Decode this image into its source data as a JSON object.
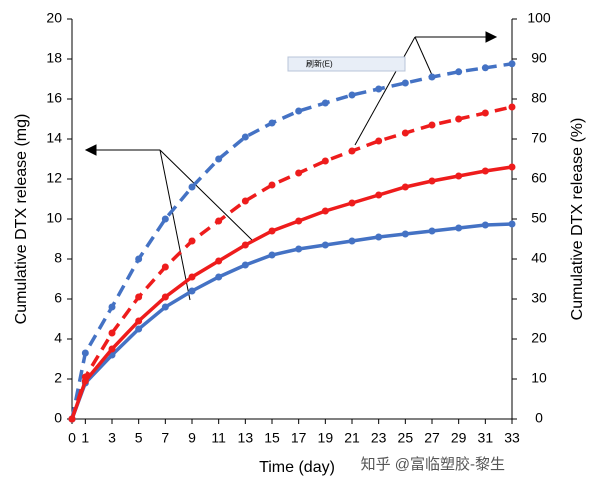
{
  "chart_data": {
    "type": "line",
    "x_label": "Time (day)",
    "y_label": "Cumulative DTX release (mg)",
    "y2_label": "Cumulative DTX release (%)",
    "x": [
      0,
      1,
      3,
      5,
      7,
      9,
      11,
      13,
      15,
      17,
      19,
      21,
      23,
      25,
      27,
      29,
      31,
      33
    ],
    "xlim": [
      0,
      33
    ],
    "xticks": [
      0,
      1,
      3,
      5,
      7,
      9,
      11,
      13,
      15,
      17,
      19,
      21,
      23,
      25,
      27,
      29,
      31,
      33
    ],
    "ylim": [
      0,
      20
    ],
    "yticks": [
      0,
      2,
      4,
      6,
      8,
      10,
      12,
      14,
      16,
      18,
      20
    ],
    "y2lim": [
      0,
      100
    ],
    "y2ticks": [
      0,
      10,
      20,
      30,
      40,
      50,
      60,
      70,
      80,
      90,
      100
    ],
    "series": [
      {
        "color": "#4472c4",
        "dashed": false,
        "values": [
          0,
          1.8,
          3.2,
          4.5,
          5.6,
          6.4,
          7.1,
          7.7,
          8.2,
          8.5,
          8.7,
          8.9,
          9.1,
          9.25,
          9.4,
          9.55,
          9.7,
          9.75
        ]
      },
      {
        "color": "#ee1c1c",
        "dashed": false,
        "values": [
          0,
          1.9,
          3.5,
          4.9,
          6.1,
          7.1,
          7.9,
          8.7,
          9.4,
          9.9,
          10.4,
          10.8,
          11.2,
          11.6,
          11.9,
          12.15,
          12.4,
          12.6
        ]
      },
      {
        "color": "#4472c4",
        "dashed": true,
        "axis": "y2",
        "values": [
          0,
          16.5,
          28,
          40,
          50,
          58,
          65,
          70.5,
          74,
          77,
          79,
          81,
          82.5,
          84,
          85.5,
          86.8,
          87.8,
          88.8
        ]
      },
      {
        "color": "#ee1c1c",
        "dashed": true,
        "axis": "y2",
        "values": [
          0,
          10.5,
          21.5,
          30.5,
          38,
          44.5,
          49.5,
          54.5,
          58.5,
          61.5,
          64.5,
          67,
          69.5,
          71.5,
          73.5,
          75,
          76.5,
          78
        ]
      }
    ],
    "tooltip": "刷新(E)",
    "watermark": "知乎 @富临塑胶-黎生"
  }
}
